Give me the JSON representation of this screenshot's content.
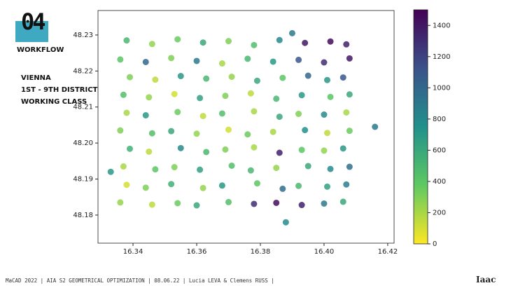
{
  "slide": {
    "number": "04",
    "section": "WORKFLOW",
    "caption": [
      "VIENNA",
      "1ST - 9TH DISTRICT",
      "WORKING CLASS"
    ],
    "footer": "MaCAD 2022 | AIA S2 GEOMETRICAL OPTIMIZATION | 08.06.22 | Lucia LEVA & Clemens RUSS |",
    "logo": "Iaac"
  },
  "chart_data": {
    "type": "scatter",
    "colormap": "viridis_r",
    "xlim": [
      16.329,
      16.422
    ],
    "ylim": [
      48.1722,
      48.2368
    ],
    "clim": [
      0,
      1500
    ],
    "xticks": [
      16.34,
      16.36,
      16.38,
      {
        "value": 16.4,
        "label": "16.40"
      },
      16.42
    ],
    "yticks": [
      48.18,
      48.19,
      {
        "value": 48.2,
        "label": "48.20"
      },
      48.21,
      48.22,
      48.23
    ],
    "cticks": [
      0,
      200,
      400,
      600,
      800,
      1000,
      1200,
      1400
    ],
    "x": [
      16.338,
      16.346,
      16.354,
      16.362,
      16.37,
      16.378,
      16.386,
      16.394,
      16.402,
      16.407,
      16.336,
      16.344,
      16.352,
      16.36,
      16.368,
      16.376,
      16.384,
      16.392,
      16.4,
      16.408,
      16.339,
      16.347,
      16.355,
      16.363,
      16.371,
      16.379,
      16.387,
      16.395,
      16.401,
      16.406,
      16.337,
      16.345,
      16.353,
      16.361,
      16.369,
      16.377,
      16.385,
      16.393,
      16.402,
      16.408,
      16.338,
      16.344,
      16.354,
      16.362,
      16.368,
      16.378,
      16.386,
      16.392,
      16.4,
      16.407,
      16.336,
      16.346,
      16.352,
      16.36,
      16.37,
      16.376,
      16.384,
      16.394,
      16.401,
      16.408,
      16.339,
      16.345,
      16.355,
      16.363,
      16.369,
      16.378,
      16.386,
      16.393,
      16.4,
      16.406,
      16.337,
      16.347,
      16.353,
      16.361,
      16.371,
      16.377,
      16.385,
      16.395,
      16.402,
      16.408,
      16.338,
      16.344,
      16.352,
      16.362,
      16.368,
      16.379,
      16.387,
      16.392,
      16.401,
      16.407,
      16.336,
      16.346,
      16.354,
      16.36,
      16.37,
      16.378,
      16.385,
      16.393,
      16.4,
      16.406,
      16.416,
      16.333,
      16.388,
      16.39
    ],
    "y": [
      48.2285,
      48.2275,
      48.2288,
      48.2279,
      48.2283,
      48.2272,
      48.2286,
      48.2278,
      48.2282,
      48.2274,
      48.2232,
      48.2225,
      48.2236,
      48.2228,
      48.2221,
      48.2234,
      48.2226,
      48.2231,
      48.2224,
      48.2235,
      48.2183,
      48.2176,
      48.2186,
      48.2179,
      48.2184,
      48.2173,
      48.2181,
      48.2187,
      48.2175,
      48.2182,
      48.2134,
      48.2127,
      48.2136,
      48.2125,
      48.2131,
      48.2138,
      48.2123,
      48.2133,
      48.2128,
      48.2135,
      48.2084,
      48.2077,
      48.2086,
      48.2075,
      48.2082,
      48.2088,
      48.2073,
      48.2081,
      48.2079,
      48.2085,
      48.2035,
      48.2027,
      48.2033,
      48.2026,
      48.2037,
      48.2024,
      48.2031,
      48.2036,
      48.2028,
      48.2034,
      48.1984,
      48.1976,
      48.1986,
      48.1975,
      48.1982,
      48.1988,
      48.1973,
      48.1981,
      48.1979,
      48.1985,
      48.1935,
      48.1927,
      48.1933,
      48.1926,
      48.1937,
      48.1924,
      48.1931,
      48.1936,
      48.1928,
      48.1934,
      48.1884,
      48.1876,
      48.1886,
      48.1875,
      48.1882,
      48.1888,
      48.1873,
      48.1881,
      48.1879,
      48.1885,
      48.1835,
      48.1829,
      48.1833,
      48.1827,
      48.1836,
      48.1831,
      48.1834,
      48.1828,
      48.1832,
      48.1837,
      48.2045,
      48.192,
      48.178,
      48.2305
    ],
    "c": [
      500,
      250,
      350,
      600,
      300,
      450,
      800,
      1400,
      1450,
      1350,
      400,
      1000,
      300,
      900,
      200,
      500,
      700,
      1100,
      1300,
      1400,
      300,
      150,
      700,
      500,
      250,
      600,
      400,
      1000,
      700,
      1100,
      450,
      250,
      100,
      650,
      300,
      150,
      500,
      700,
      400,
      600,
      200,
      700,
      350,
      150,
      450,
      200,
      600,
      300,
      800,
      200,
      300,
      450,
      600,
      250,
      100,
      350,
      200,
      750,
      150,
      350,
      550,
      150,
      800,
      500,
      300,
      200,
      1350,
      400,
      250,
      700,
      200,
      400,
      300,
      650,
      450,
      500,
      250,
      600,
      800,
      950,
      100,
      300,
      550,
      250,
      700,
      400,
      950,
      500,
      650,
      850,
      250,
      150,
      350,
      600,
      450,
      1300,
      1450,
      1350,
      900,
      600,
      900,
      700,
      800,
      900
    ]
  }
}
